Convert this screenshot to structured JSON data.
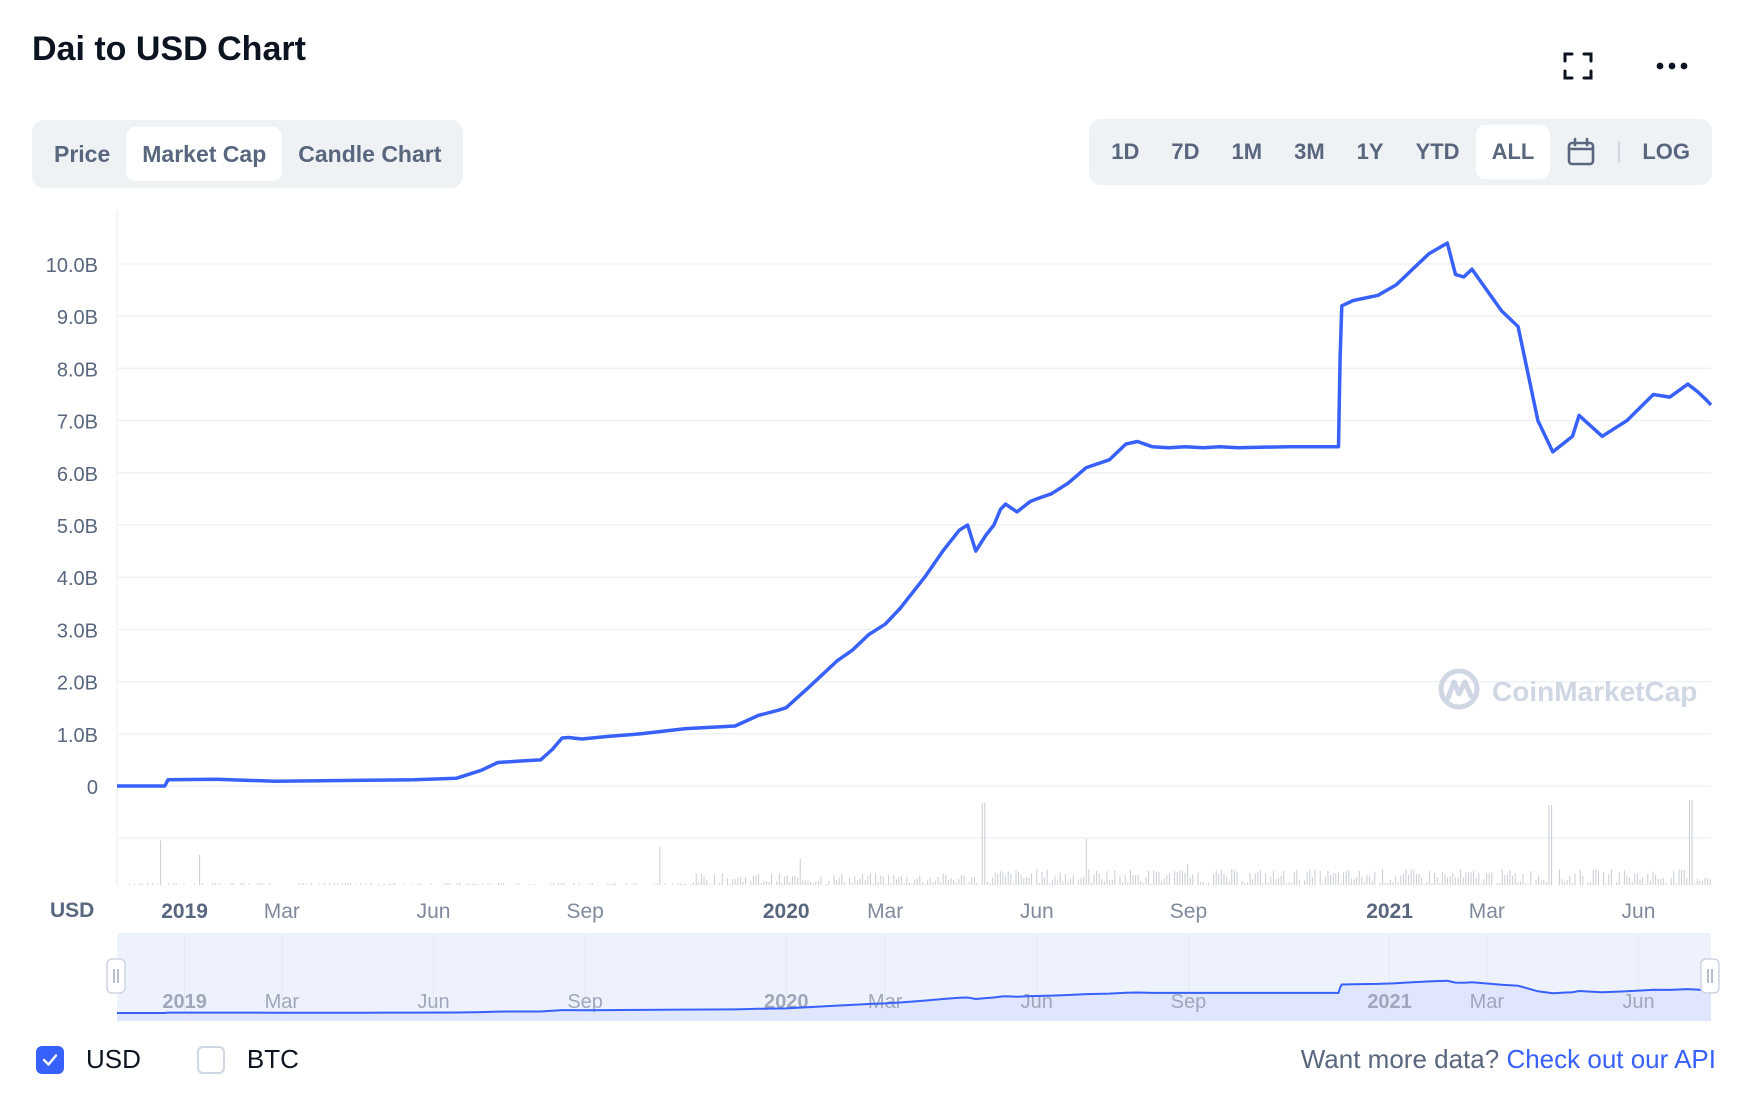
{
  "title": "Dai to USD Chart",
  "icons": {
    "expand": "expand-icon",
    "more": "more-icon",
    "calendar": "calendar-icon",
    "watermark": "coinmarketcap-logo"
  },
  "chart_tabs": [
    {
      "label": "Price",
      "active": false
    },
    {
      "label": "Market Cap",
      "active": true
    },
    {
      "label": "Candle Chart",
      "active": false
    }
  ],
  "range_tabs": [
    {
      "label": "1D",
      "active": false
    },
    {
      "label": "7D",
      "active": false
    },
    {
      "label": "1M",
      "active": false
    },
    {
      "label": "3M",
      "active": false
    },
    {
      "label": "1Y",
      "active": false
    },
    {
      "label": "YTD",
      "active": false
    },
    {
      "label": "ALL",
      "active": true
    }
  ],
  "log_label": "LOG",
  "watermark_text": "CoinMarketCap",
  "currency_axis_label": "USD",
  "legend": [
    {
      "label": "USD",
      "checked": true
    },
    {
      "label": "BTC",
      "checked": false
    }
  ],
  "api": {
    "prefix": "Want more data?",
    "link": "Check out our API"
  },
  "colors": {
    "line": "#3861fb",
    "navigator_fill": "#dfe6fd",
    "text_muted": "#58667e",
    "grid": "#eff2f5"
  },
  "chart_data": {
    "type": "line",
    "series": [
      {
        "x": [
          "2018-11-21",
          "2018-12-20",
          "2018-12-22",
          "2019-01-20",
          "2019-02-25",
          "2019-03-25",
          "2019-04-20",
          "2019-05-20",
          "2019-06-15",
          "2019-06-30",
          "2019-07-10",
          "2019-07-25",
          "2019-08-05",
          "2019-08-12",
          "2019-08-18",
          "2019-08-22",
          "2019-08-30",
          "2019-09-15",
          "2019-10-05",
          "2019-11-01",
          "2019-12-01",
          "2019-12-15",
          "2019-12-27",
          "2020-01-01",
          "2020-01-15",
          "2020-02-01",
          "2020-02-10",
          "2020-02-20",
          "2020-03-01",
          "2020-03-10",
          "2020-03-25",
          "2020-04-05",
          "2020-04-15",
          "2020-04-20",
          "2020-04-25",
          "2020-05-01",
          "2020-05-06",
          "2020-05-10",
          "2020-05-13",
          "2020-05-20",
          "2020-05-28",
          "2020-06-01",
          "2020-06-10",
          "2020-06-20",
          "2020-07-01",
          "2020-07-15",
          "2020-07-25",
          "2020-08-01",
          "2020-08-10",
          "2020-08-20",
          "2020-08-30",
          "2020-09-10",
          "2020-09-20",
          "2020-10-01",
          "2020-11-01",
          "2020-12-01",
          "2020-12-02",
          "2020-12-03",
          "2020-12-10",
          "2020-12-25",
          "2021-01-05",
          "2021-01-15",
          "2021-01-25",
          "2021-02-05",
          "2021-02-10",
          "2021-02-15",
          "2021-02-20",
          "2021-03-01",
          "2021-03-10",
          "2021-03-20",
          "2021-04-01",
          "2021-04-10",
          "2021-04-18",
          "2021-04-22",
          "2021-04-26",
          "2021-05-10",
          "2021-05-20",
          "2021-05-25",
          "2021-06-10",
          "2021-06-20",
          "2021-07-01",
          "2021-07-07",
          "2021-07-12",
          "2021-07-15"
        ],
        "y": [
          0.0,
          0.0,
          0.12,
          0.13,
          0.09,
          0.1,
          0.11,
          0.12,
          0.15,
          0.3,
          0.45,
          0.48,
          0.5,
          0.7,
          0.92,
          0.93,
          0.9,
          0.95,
          1.0,
          1.1,
          1.15,
          1.35,
          1.45,
          1.5,
          1.9,
          2.4,
          2.6,
          2.9,
          3.1,
          3.4,
          4.0,
          4.5,
          4.9,
          5.0,
          4.5,
          4.8,
          5.0,
          5.3,
          5.4,
          5.25,
          5.45,
          5.5,
          5.6,
          5.8,
          6.1,
          6.25,
          6.55,
          6.6,
          6.5,
          6.48,
          6.5,
          6.48,
          6.5,
          6.48,
          6.5,
          6.5,
          8.2,
          9.2,
          9.3,
          9.4,
          9.6,
          9.9,
          10.2,
          10.4,
          9.8,
          9.75,
          9.9,
          9.5,
          9.1,
          8.8,
          7.0,
          6.4,
          6.6,
          6.7,
          7.1,
          6.7,
          6.9,
          7.0,
          7.5,
          7.45,
          7.7,
          7.55,
          7.4,
          7.3
        ]
      }
    ],
    "y_ticks": [
      "10.0B",
      "9.0B",
      "8.0B",
      "7.0B",
      "6.0B",
      "5.0B",
      "4.0B",
      "3.0B",
      "2.0B",
      "1.0B",
      "0"
    ],
    "y_tick_values": [
      10,
      9,
      8,
      7,
      6,
      5,
      4,
      3,
      2,
      1,
      0
    ],
    "x_ticks": [
      {
        "label": "2019",
        "date": "2019-01-01",
        "bold": true
      },
      {
        "label": "Mar",
        "date": "2019-03-01",
        "bold": false
      },
      {
        "label": "Jun",
        "date": "2019-06-01",
        "bold": false
      },
      {
        "label": "Sep",
        "date": "2019-09-01",
        "bold": false
      },
      {
        "label": "2020",
        "date": "2020-01-01",
        "bold": true
      },
      {
        "label": "Mar",
        "date": "2020-03-01",
        "bold": false
      },
      {
        "label": "Jun",
        "date": "2020-06-01",
        "bold": false
      },
      {
        "label": "Sep",
        "date": "2020-09-01",
        "bold": false
      },
      {
        "label": "2021",
        "date": "2021-01-01",
        "bold": true
      },
      {
        "label": "Mar",
        "date": "2021-03-01",
        "bold": false
      },
      {
        "label": "Jun",
        "date": "2021-06-01",
        "bold": false
      }
    ],
    "x_range": [
      "2018-11-21",
      "2021-07-15"
    ],
    "ylim": [
      0,
      10.5
    ],
    "grid": true
  }
}
